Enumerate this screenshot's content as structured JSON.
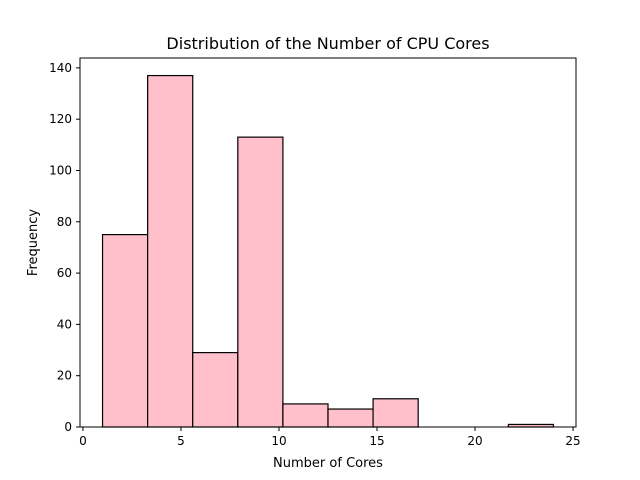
{
  "chart_data": {
    "type": "bar",
    "title": "Distribution of the Number of CPU Cores",
    "xlabel": "Number of Cores",
    "ylabel": "Frequency",
    "xlim": [
      -0.15,
      25.15
    ],
    "ylim": [
      0,
      143.85
    ],
    "xticks": [
      0,
      5,
      10,
      15,
      20,
      25
    ],
    "yticks": [
      0,
      20,
      40,
      60,
      80,
      100,
      120,
      140
    ],
    "bin_edges": [
      1,
      3.3,
      5.6,
      7.9,
      10.2,
      12.5,
      14.8,
      17.1,
      19.4,
      21.7,
      24
    ],
    "values": [
      75,
      137,
      29,
      113,
      9,
      7,
      11,
      0,
      0,
      1
    ],
    "colors": {
      "bar_fill": "#ffc0cb",
      "bar_edge": "#000000"
    },
    "grid": false,
    "legend": "none"
  }
}
